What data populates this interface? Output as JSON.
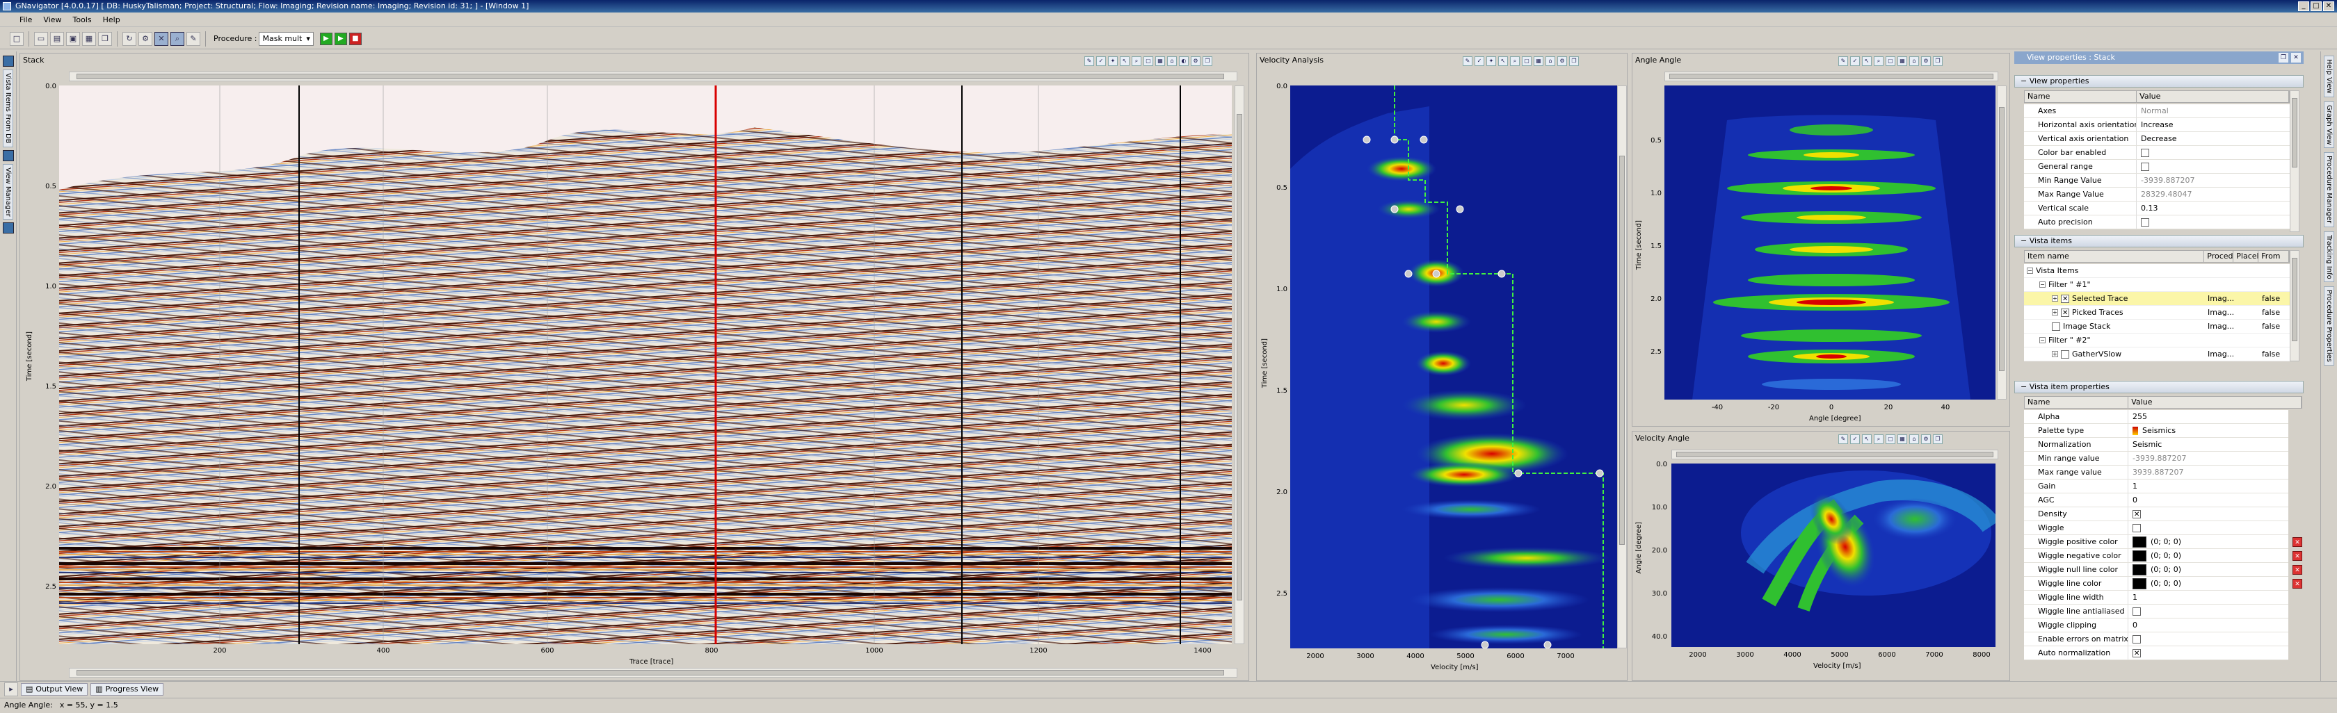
{
  "window": {
    "title": "GNavigator [4.0.0.17] [ DB: HuskyTalisman; Project: Structural; Flow: Imaging; Revision name: Imaging; Revision id: 31; ] - [Window 1]",
    "buttons": [
      "_",
      "□",
      "✕"
    ]
  },
  "menu": [
    "File",
    "View",
    "Tools",
    "Help"
  ],
  "toolbar": {
    "procedure_label": "Procedure :",
    "procedure_value": "Mask mult"
  },
  "left_dock": {
    "tabs": [
      "Vista Items From DB",
      "View Manager"
    ]
  },
  "right_dock": {
    "tabs": [
      "Help View",
      "Graph View",
      "Procedure Manager",
      "Tracking Info",
      "Procedure Properties"
    ]
  },
  "stack": {
    "title": "Stack",
    "y_title": "Time [second]",
    "x_title": "Trace [trace]",
    "y_ticks": [
      "0.0",
      "0.5",
      "1.0",
      "1.5",
      "2.0",
      "2.5"
    ],
    "x_ticks": [
      "200",
      "400",
      "600",
      "800",
      "1000",
      "1200",
      "1400"
    ]
  },
  "velocity_analysis": {
    "title": "Velocity Analysis",
    "y_title": "Time [second]",
    "x_title": "Velocity [m/s]",
    "y_ticks": [
      "0.0",
      "0.5",
      "1.0",
      "1.5",
      "2.0",
      "2.5"
    ],
    "x_ticks": [
      "2000",
      "3000",
      "4000",
      "5000",
      "6000",
      "7000"
    ]
  },
  "angle_angle": {
    "title": "Angle Angle",
    "y_title": "Time [second]",
    "x_title": "Angle [degree]",
    "y_ticks": [
      "0.5",
      "1.0",
      "1.5",
      "2.0",
      "2.5"
    ],
    "x_ticks": [
      "-40",
      "-20",
      "0",
      "20",
      "40"
    ]
  },
  "velocity_angle": {
    "title": "Velocity Angle",
    "y_title": "Angle [degree]",
    "x_title": "Velocity [m/s]",
    "y_ticks": [
      "0.0",
      "10.0",
      "20.0",
      "30.0",
      "40.0"
    ],
    "x_ticks": [
      "2000",
      "3000",
      "4000",
      "5000",
      "6000",
      "7000",
      "8000"
    ]
  },
  "view_properties_panel": {
    "title": "View properties : Stack",
    "section": "View properties",
    "col_name": "Name",
    "col_value": "Value",
    "rows": [
      {
        "name": "Axes",
        "value": "Normal",
        "grey": true
      },
      {
        "name": "Horizontal axis orientation",
        "value": "Increase"
      },
      {
        "name": "Vertical axis orientation",
        "value": "Decrease"
      },
      {
        "name": "Color bar enabled",
        "value": "",
        "check": false
      },
      {
        "name": "General range",
        "value": "",
        "check": false
      },
      {
        "name": "Min Range Value",
        "value": "-3939.887207",
        "grey": true
      },
      {
        "name": "Max Range Value",
        "value": "28329.48047",
        "grey": true
      },
      {
        "name": "Vertical scale",
        "value": "0.13"
      },
      {
        "name": "Auto precision",
        "value": "",
        "check": false
      }
    ]
  },
  "vista_items": {
    "section": "Vista items",
    "cols": [
      "Item name",
      "Proced",
      "Placel",
      "From DB"
    ],
    "rows": [
      {
        "name": "Vista Items",
        "indent": 0,
        "exp": "−"
      },
      {
        "name": "Filter \" #1\"",
        "indent": 1,
        "exp": "−"
      },
      {
        "name": "Selected Trace",
        "indent": 2,
        "exp": "+",
        "check": true,
        "proc": "Imag...",
        "db": "false",
        "sel": true
      },
      {
        "name": "Picked Traces",
        "indent": 2,
        "exp": "+",
        "check": true,
        "proc": "Imag...",
        "db": "false"
      },
      {
        "name": "Image Stack",
        "indent": 2,
        "exp": "",
        "check": false,
        "proc": "Imag...",
        "db": "false"
      },
      {
        "name": "Filter \" #2\"",
        "indent": 1,
        "exp": "−"
      },
      {
        "name": "GatherVSlow",
        "indent": 2,
        "exp": "+",
        "check": false,
        "proc": "Imag...",
        "db": "false"
      }
    ]
  },
  "vista_item_properties": {
    "section": "Vista item properties",
    "col_name": "Name",
    "col_value": "Value",
    "rows": [
      {
        "name": "Alpha",
        "value": "255"
      },
      {
        "name": "Palette type",
        "value": "Seismics",
        "palette": true
      },
      {
        "name": "Normalization",
        "value": "Seismic"
      },
      {
        "name": "Min range value",
        "value": "-3939.887207",
        "grey": true
      },
      {
        "name": "Max range value",
        "value": "3939.887207",
        "grey": true
      },
      {
        "name": "Gain",
        "value": "1"
      },
      {
        "name": "AGC",
        "value": "0"
      },
      {
        "name": "Density",
        "value": "",
        "check": true
      },
      {
        "name": "Wiggle",
        "value": "",
        "check": false
      },
      {
        "name": "Wiggle positive color",
        "value": "(0; 0; 0)",
        "swatch": true,
        "del": true
      },
      {
        "name": "Wiggle negative color",
        "value": "(0; 0; 0)",
        "swatch": true,
        "del": true
      },
      {
        "name": "Wiggle null line color",
        "value": "(0; 0; 0)",
        "swatch": true,
        "del": true
      },
      {
        "name": "Wiggle line color",
        "value": "(0; 0; 0)",
        "swatch": true,
        "del": true
      },
      {
        "name": "Wiggle line width",
        "value": "1"
      },
      {
        "name": "Wiggle line antialiased",
        "value": "",
        "check": false
      },
      {
        "name": "Wiggle clipping",
        "value": "0"
      },
      {
        "name": "Enable errors on matrix",
        "value": "",
        "check": false
      },
      {
        "name": "Auto normalization",
        "value": "",
        "check": true
      }
    ]
  },
  "bottom_tabs": [
    "Output View",
    "Progress View"
  ],
  "status": {
    "label": "Angle Angle:",
    "coords": "x = 55, y = 1.5"
  }
}
